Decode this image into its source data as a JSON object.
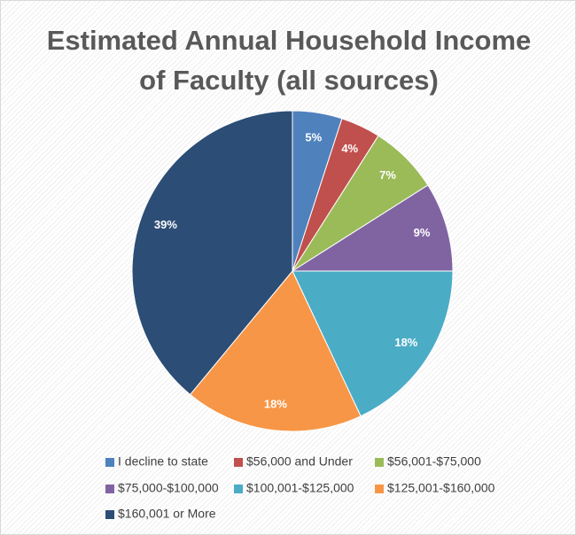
{
  "chart_data": {
    "type": "pie",
    "title": "Estimated Annual Household Income of Faculty (all sources)",
    "categories": [
      "I decline to state",
      "$56,000 and Under",
      "$56,001-$75,000",
      "$75,000-$100,000",
      "$100,001-$125,000",
      "$125,001-$160,000",
      "$160,001 or More"
    ],
    "values": [
      5,
      4,
      7,
      9,
      18,
      18,
      39
    ],
    "value_labels": [
      "5%",
      "4%",
      "7%",
      "9%",
      "18%",
      "18%",
      "39%"
    ],
    "colors": [
      "#4f81bd",
      "#c0504d",
      "#9bbb59",
      "#8064a2",
      "#4bacc6",
      "#f79646",
      "#2c4d75"
    ],
    "legend": "bottom"
  }
}
